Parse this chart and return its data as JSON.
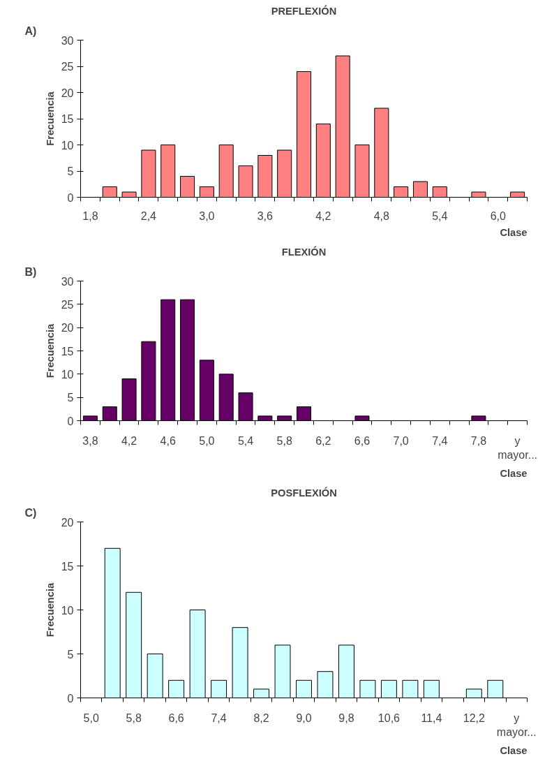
{
  "chart_data": [
    {
      "type": "bar",
      "title": "PREFLEXIÓN",
      "xlabel": "Clase",
      "ylabel": "Frecuencia",
      "annotations": [
        "A)"
      ],
      "categories": [
        "1,8",
        null,
        null,
        "2,4",
        null,
        null,
        "3,0",
        null,
        null,
        "3,6",
        null,
        null,
        "4,2",
        null,
        null,
        "4,8",
        null,
        null,
        "5,4",
        null,
        null,
        "6,0",
        null
      ],
      "series": [
        {
          "color": "#ff8080",
          "values": [
            0,
            2,
            1,
            9,
            10,
            4,
            2,
            10,
            6,
            8,
            9,
            24,
            14,
            27,
            10,
            17,
            2,
            3,
            2,
            0,
            1,
            0,
            1
          ]
        }
      ],
      "ylim": [
        0,
        30
      ],
      "yticks": [
        0,
        5,
        10,
        15,
        20,
        25,
        30
      ],
      "grid": false
    },
    {
      "type": "bar",
      "title": "FLEXIÓN",
      "xlabel": "Clase",
      "ylabel": "Frecuencia",
      "annotations": [
        "B)"
      ],
      "categories": [
        "3,8",
        null,
        "4,2",
        null,
        "4,6",
        null,
        "5,0",
        null,
        "5,4",
        null,
        "5,8",
        null,
        "6,2",
        null,
        "6,6",
        null,
        "7,0",
        null,
        "7,4",
        null,
        "7,8",
        null,
        "y mayor..."
      ],
      "series": [
        {
          "color": "#660066",
          "values": [
            1,
            3,
            9,
            17,
            26,
            26,
            13,
            10,
            6,
            1,
            1,
            3,
            0,
            0,
            1,
            0,
            0,
            0,
            0,
            0,
            1,
            0,
            0
          ]
        }
      ],
      "ylim": [
        0,
        30
      ],
      "yticks": [
        0,
        5,
        10,
        15,
        20,
        25,
        30
      ],
      "grid": false
    },
    {
      "type": "bar",
      "title": "POSFLEXIÓN",
      "xlabel": "Clase",
      "ylabel": "Frecuencia",
      "annotations": [
        "C)"
      ],
      "categories": [
        "5,0",
        null,
        "5,8",
        null,
        "6,6",
        null,
        "7,4",
        null,
        "8,2",
        null,
        "9,0",
        null,
        "9,8",
        null,
        "10,6",
        null,
        "11,4",
        null,
        "12,2",
        null,
        "y mayor..."
      ],
      "series": [
        {
          "color": "#ccffff",
          "values": [
            0,
            17,
            12,
            5,
            2,
            10,
            2,
            8,
            1,
            6,
            2,
            3,
            6,
            2,
            2,
            2,
            2,
            0,
            1,
            2,
            0
          ]
        }
      ],
      "ylim": [
        0,
        20
      ],
      "yticks": [
        0,
        5,
        10,
        15,
        20
      ],
      "grid": false
    }
  ]
}
